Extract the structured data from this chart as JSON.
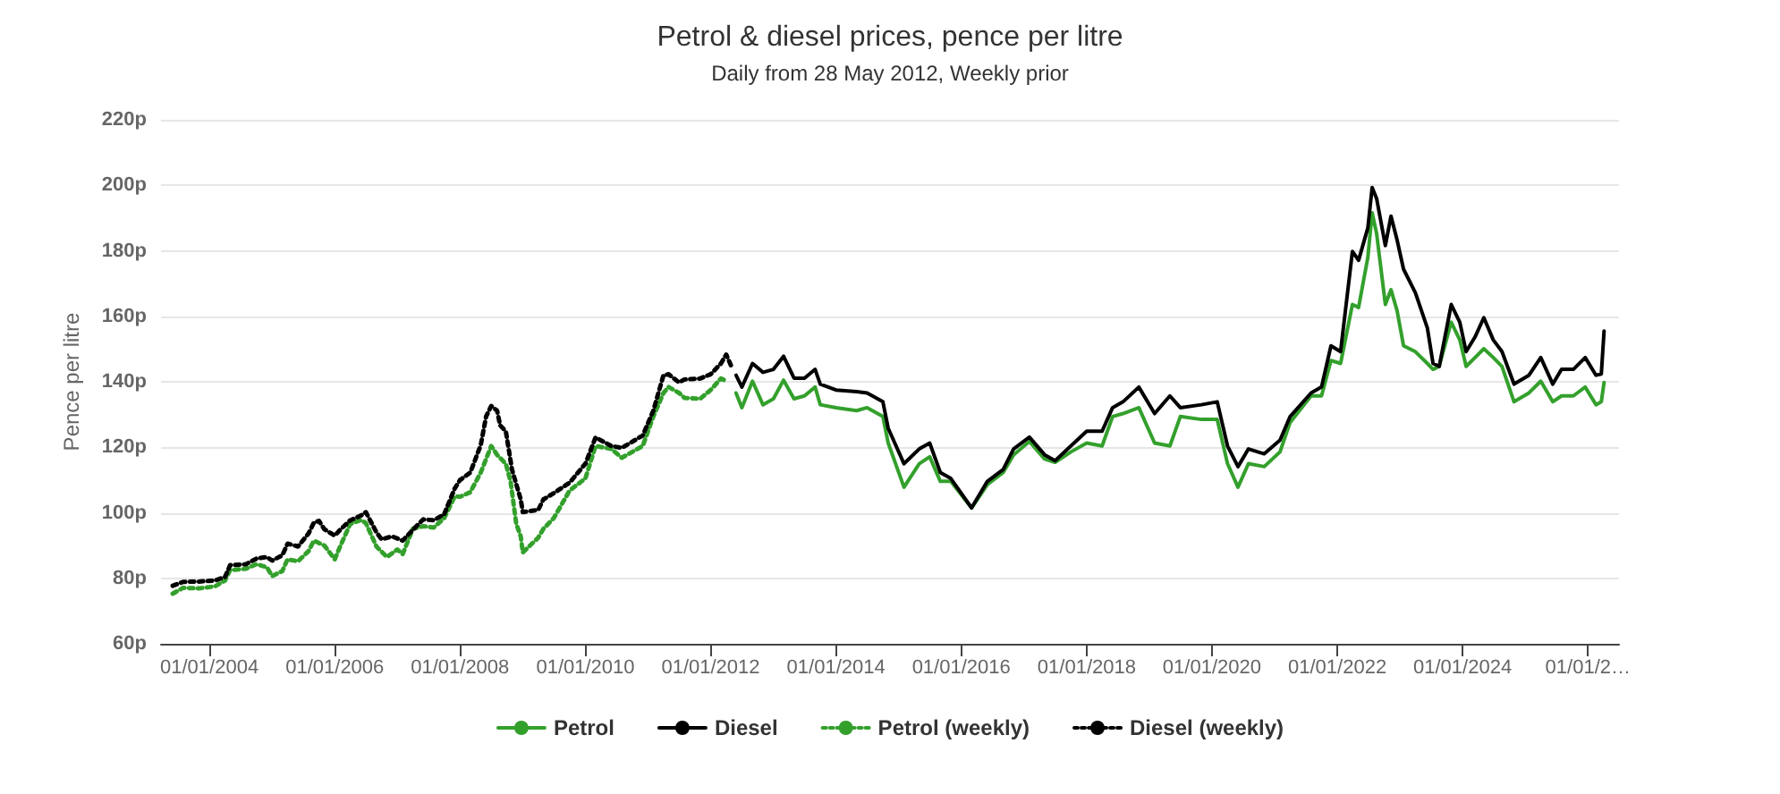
{
  "chart_data": {
    "type": "line",
    "title": "Petrol & diesel prices, pence per litre",
    "subtitle": "Daily from 28 May 2012, Weekly prior",
    "ylabel": "Pence per litre",
    "x": [
      "2012-05-28",
      "2012-07",
      "2012-09",
      "2012-11",
      "2013-01",
      "2013-03",
      "2013-05",
      "2013-07",
      "2013-09",
      "2013-10",
      "2014-01",
      "2014-05",
      "2014-07",
      "2014-10",
      "2014-11",
      "2015-02",
      "2015-05",
      "2015-07",
      "2015-09",
      "2015-11",
      "2016-03",
      "2016-06",
      "2016-09",
      "2016-11",
      "2017-02",
      "2017-05",
      "2017-07",
      "2017-10",
      "2018-01",
      "2018-04",
      "2018-06",
      "2018-08",
      "2018-11",
      "2019-02",
      "2019-05",
      "2019-07",
      "2019-11",
      "2020-02",
      "2020-04",
      "2020-06",
      "2020-08",
      "2020-11",
      "2021-02",
      "2021-04",
      "2021-08",
      "2021-10",
      "2021-11-25",
      "2022-01-20",
      "2022-03-30",
      "2022-05-05",
      "2022-06-28",
      "2022-07-23",
      "2022-08-18",
      "2022-10-08",
      "2022-11-10",
      "2022-12-15",
      "2023-01-22",
      "2023-04-01",
      "2023-06-10",
      "2023-07-13",
      "2023-08-18",
      "2023-10-27",
      "2023-12-16",
      "2024-01-22",
      "2024-03-14",
      "2024-05-04",
      "2024-06-28",
      "2024-08-18",
      "2024-10-27",
      "2025-01-22",
      "2025-04-01",
      "2025-06-10",
      "2025-07-31",
      "2025-10-08",
      "2025-12-16",
      "2026-02-17",
      "2026-03-20",
      "2026-04-05"
    ],
    "series": [
      {
        "name": "Petrol",
        "color": "#33a02c",
        "line_style": "solid",
        "values": [
          136.6,
          132.1,
          140.2,
          133,
          134.8,
          140.5,
          134.8,
          135.7,
          138.4,
          133,
          132.1,
          131.2,
          132.1,
          129.4,
          121.3,
          107.8,
          115,
          117.1,
          109.6,
          109.6,
          101.5,
          108.6,
          112.3,
          117.7,
          121.8,
          116.4,
          115.4,
          118.6,
          121.3,
          120.4,
          129.4,
          130.3,
          132.1,
          121.3,
          120.4,
          129.4,
          128.5,
          128.5,
          115,
          107.8,
          115,
          114.1,
          118.6,
          127.6,
          135.7,
          135.7,
          146.5,
          145.6,
          163.6,
          162.7,
          178,
          191.6,
          185.3,
          163.6,
          168.1,
          161.8,
          151,
          149.2,
          145.6,
          143.8,
          144.7,
          158.2,
          152.8,
          144.7,
          147.4,
          150.1,
          147.4,
          144.7,
          133.9,
          136.6,
          140.2,
          133.9,
          135.7,
          135.7,
          138.4,
          133,
          133.9,
          139.8
        ]
      },
      {
        "name": "Diesel",
        "color": "#000000",
        "line_style": "solid",
        "values": [
          142,
          138.4,
          145.6,
          142.9,
          143.8,
          147.8,
          141.1,
          141.1,
          143.8,
          139.3,
          137.5,
          137,
          136.6,
          133.9,
          125.8,
          115,
          119.5,
          121.3,
          112.3,
          110.5,
          101.5,
          109.6,
          113.2,
          119.5,
          123.1,
          117.7,
          115.9,
          120.4,
          124.9,
          124.9,
          132.1,
          133.9,
          138.4,
          130.3,
          135.7,
          132.1,
          133,
          133.9,
          120.4,
          114.1,
          119.5,
          118,
          122.2,
          129.4,
          136.6,
          138.4,
          151,
          149.2,
          179.8,
          177.1,
          187,
          199.3,
          196,
          181.6,
          190.6,
          183.4,
          174.4,
          167.2,
          156.4,
          145.6,
          144.7,
          163.6,
          158.2,
          149.2,
          153.7,
          159.6,
          152.8,
          149.2,
          139.3,
          142,
          147.4,
          139.3,
          143.8,
          143.8,
          147.4,
          142,
          142.4,
          155.5
        ]
      },
      {
        "name": "Petrol (weekly)",
        "color": "#33a02c",
        "line_style": "dotted",
        "x": [
          "2003-06",
          "2003-08",
          "2003-11",
          "2004-02",
          "2004-04",
          "2004-05",
          "2004-08",
          "2004-10",
          "2004-12",
          "2005-01",
          "2005-03",
          "2005-04",
          "2005-06",
          "2005-08",
          "2005-09",
          "2005-11",
          "2006-01",
          "2006-02",
          "2006-04",
          "2006-06",
          "2006-07",
          "2006-09",
          "2006-11",
          "2007-01",
          "2007-02",
          "2007-04",
          "2007-06",
          "2007-08",
          "2007-10",
          "2007-12",
          "2008-01",
          "2008-03",
          "2008-05",
          "2008-07-01",
          "2008-08-04",
          "2008-09-24",
          "2008-10-22",
          "2008-11-24",
          "2008-12-20",
          "2009-01",
          "2009-04",
          "2009-05",
          "2009-07",
          "2009-10",
          "2010-01",
          "2010-03",
          "2010-06",
          "2010-08",
          "2010-12",
          "2011-02",
          "2011-04",
          "2011-05",
          "2011-07",
          "2011-08",
          "2011-11",
          "2012-01",
          "2012-03",
          "2012-04"
        ],
        "values": [
          75.3,
          77.1,
          76.9,
          77.5,
          79.3,
          82.5,
          82.9,
          84.3,
          83.4,
          80.7,
          82.2,
          85.8,
          85.2,
          88.3,
          91.5,
          90,
          85.8,
          89.7,
          96.6,
          97.8,
          96.9,
          89.7,
          86.5,
          88.8,
          87.4,
          95.1,
          95.9,
          95.5,
          98.4,
          105,
          104.9,
          106.3,
          112.3,
          120.4,
          117.7,
          115,
          109.5,
          96.6,
          92.8,
          87.9,
          92.4,
          95.1,
          98.4,
          106.8,
          110.5,
          120.4,
          119.5,
          116.8,
          120.4,
          129.4,
          136.6,
          138.4,
          136.6,
          135.1,
          134.8,
          137.5,
          141,
          140.2
        ]
      },
      {
        "name": "Diesel (weekly)",
        "color": "#000000",
        "line_style": "dotted",
        "x": [
          "2003-06",
          "2003-08",
          "2003-11",
          "2004-02",
          "2004-04",
          "2004-05",
          "2004-08",
          "2004-10",
          "2004-12",
          "2005-01",
          "2005-03",
          "2005-04",
          "2005-06",
          "2005-08",
          "2005-09",
          "2005-10",
          "2005-11",
          "2006-01",
          "2006-02",
          "2006-04",
          "2006-06",
          "2006-07",
          "2006-09",
          "2006-10",
          "2006-12",
          "2007-02",
          "2007-04",
          "2007-06",
          "2007-08",
          "2007-10",
          "2007-12",
          "2008-01",
          "2008-03",
          "2008-05",
          "2008-06",
          "2008-07-01",
          "2008-08-04",
          "2008-08-22",
          "2008-09-24",
          "2008-10-30",
          "2008-12-20",
          "2009-01",
          "2009-04",
          "2009-05",
          "2009-07",
          "2009-10",
          "2010-01",
          "2010-03",
          "2010-06",
          "2010-08",
          "2010-12",
          "2011-02",
          "2011-04",
          "2011-05",
          "2011-07",
          "2011-08",
          "2011-11",
          "2012-01",
          "2012-03",
          "2012-04",
          "2012-05"
        ],
        "values": [
          77.7,
          78.9,
          79,
          79.3,
          80.4,
          84,
          84.3,
          86,
          86.5,
          85.4,
          87,
          90.6,
          89.7,
          93.7,
          97,
          97.5,
          95,
          93,
          94.8,
          97.7,
          99.1,
          100.2,
          94,
          91.9,
          92.8,
          91.5,
          94.8,
          98,
          97.7,
          99.6,
          107.4,
          110,
          112.3,
          120.7,
          129.4,
          132.6,
          131.2,
          126.7,
          124.9,
          113.2,
          104.1,
          100.2,
          100.9,
          104.1,
          106,
          109.2,
          115,
          123,
          120.4,
          119.8,
          123.6,
          131.2,
          142,
          142.3,
          139.8,
          140.7,
          141,
          142.3,
          145.6,
          148.3,
          144.7
        ]
      }
    ],
    "xlim": [
      "2003-03-25",
      "2026-07-01"
    ],
    "xticks": [
      {
        "value": "2004-01-01",
        "label": "01/01/2004"
      },
      {
        "value": "2006-01-01",
        "label": "01/01/2006"
      },
      {
        "value": "2008-01-01",
        "label": "01/01/2008"
      },
      {
        "value": "2010-01-01",
        "label": "01/01/2010"
      },
      {
        "value": "2012-01-01",
        "label": "01/01/2012"
      },
      {
        "value": "2014-01-01",
        "label": "01/01/2014"
      },
      {
        "value": "2016-01-01",
        "label": "01/01/2016"
      },
      {
        "value": "2018-01-01",
        "label": "01/01/2018"
      },
      {
        "value": "2020-01-01",
        "label": "01/01/2020"
      },
      {
        "value": "2022-01-01",
        "label": "01/01/2022"
      },
      {
        "value": "2024-01-01",
        "label": "01/01/2024"
      },
      {
        "value": "2026-01-01",
        "label": "01/01/2…"
      }
    ],
    "ylim": [
      60,
      220
    ],
    "yticks": [
      {
        "value": 60,
        "label": "60p"
      },
      {
        "value": 80,
        "label": "80p"
      },
      {
        "value": 100,
        "label": "100p"
      },
      {
        "value": 120,
        "label": "120p"
      },
      {
        "value": 140,
        "label": "140p"
      },
      {
        "value": 160,
        "label": "160p"
      },
      {
        "value": 180,
        "label": "180p"
      },
      {
        "value": 200,
        "label": "200p"
      },
      {
        "value": 220,
        "label": "220p"
      }
    ],
    "grid": "y",
    "legend": "bottom",
    "marker": "none"
  }
}
